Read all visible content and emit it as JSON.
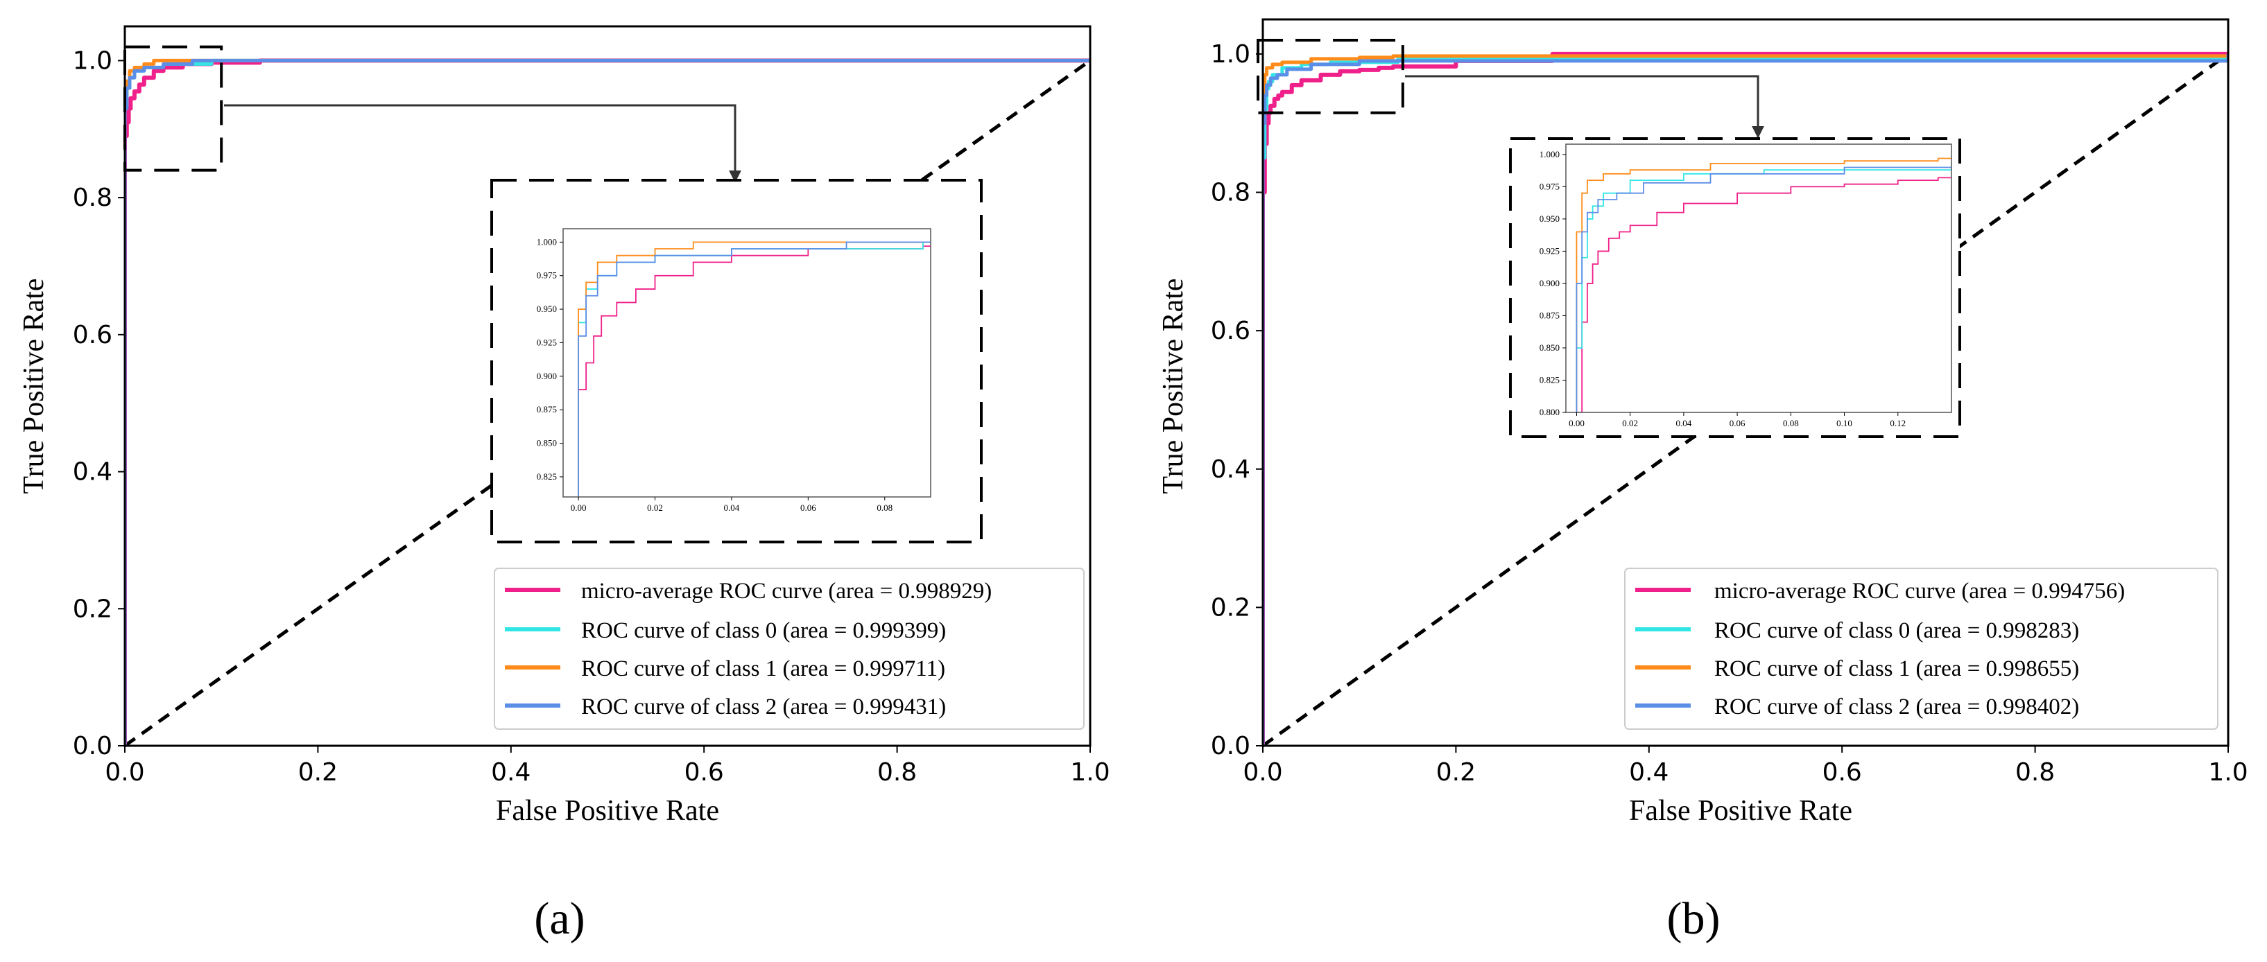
{
  "chart_data": [
    {
      "type": "line",
      "panel": "(a)",
      "caption": "(a)",
      "xlabel": "False Positive Rate",
      "ylabel": "True Positive Rate",
      "xlim": [
        0.0,
        1.0
      ],
      "ylim": [
        0.0,
        1.05
      ],
      "xticks": [
        "0.0",
        "0.2",
        "0.4",
        "0.6",
        "0.8",
        "1.0"
      ],
      "yticks": [
        "0.0",
        "0.2",
        "0.4",
        "0.6",
        "0.8",
        "1.0"
      ],
      "legend_position": "lower-right",
      "diagonal": {
        "x": [
          0,
          1
        ],
        "y": [
          0,
          1
        ],
        "style": "dashed"
      },
      "zoom_box": {
        "x": [
          0.0,
          0.1
        ],
        "y": [
          0.84,
          1.02
        ]
      },
      "series": [
        {
          "name": "micro-average ROC curve (area = 0.998929)",
          "color": "#f0208a",
          "x": [
            0,
            0,
            0.002,
            0.004,
            0.006,
            0.01,
            0.015,
            0.02,
            0.03,
            0.04,
            0.06,
            0.09,
            0.14,
            1.0
          ],
          "y": [
            0,
            0.89,
            0.91,
            0.93,
            0.945,
            0.955,
            0.965,
            0.975,
            0.985,
            0.99,
            0.995,
            0.997,
            1.0,
            1.0
          ]
        },
        {
          "name": "ROC curve of class 0 (area = 0.999399)",
          "color": "#33e6e6",
          "x": [
            0,
            0,
            0.002,
            0.005,
            0.01,
            0.02,
            0.04,
            0.09,
            1.0
          ],
          "y": [
            0,
            0.94,
            0.965,
            0.975,
            0.985,
            0.99,
            0.995,
            1.0,
            1.0
          ]
        },
        {
          "name": "ROC curve of class 1 (area = 0.999711)",
          "color": "#ff8c1a",
          "x": [
            0,
            0,
            0.002,
            0.005,
            0.01,
            0.02,
            0.03,
            1.0
          ],
          "y": [
            0,
            0.95,
            0.97,
            0.985,
            0.99,
            0.995,
            1.0,
            1.0
          ]
        },
        {
          "name": "ROC curve of class 2 (area = 0.999431)",
          "color": "#5b8ee6",
          "x": [
            0,
            0,
            0.002,
            0.005,
            0.01,
            0.02,
            0.04,
            0.07,
            1.0
          ],
          "y": [
            0,
            0.93,
            0.96,
            0.975,
            0.985,
            0.99,
            0.995,
            1.0,
            1.0
          ]
        }
      ],
      "inset": {
        "xlim": [
          -0.004,
          0.092
        ],
        "ylim": [
          0.81,
          1.01
        ],
        "xticks": [
          "0.00",
          "0.02",
          "0.04",
          "0.06",
          "0.08"
        ],
        "yticks": [
          "0.825",
          "0.850",
          "0.875",
          "0.900",
          "0.925",
          "0.950",
          "0.975",
          "1.000"
        ]
      }
    },
    {
      "type": "line",
      "panel": "(b)",
      "caption": "(b)",
      "xlabel": "False Positive Rate",
      "ylabel": "True Positive Rate",
      "xlim": [
        0.0,
        1.0
      ],
      "ylim": [
        0.0,
        1.05
      ],
      "xticks": [
        "0.0",
        "0.2",
        "0.4",
        "0.6",
        "0.8",
        "1.0"
      ],
      "yticks": [
        "0.0",
        "0.2",
        "0.4",
        "0.6",
        "0.8",
        "1.0"
      ],
      "legend_position": "lower-right",
      "diagonal": {
        "x": [
          0,
          1
        ],
        "y": [
          0,
          1
        ],
        "style": "dashed"
      },
      "zoom_box": {
        "x": [
          -0.005,
          0.145
        ],
        "y": [
          0.915,
          1.02
        ]
      },
      "series": [
        {
          "name": "micro-average ROC curve (area = 0.994756)",
          "color": "#f0208a",
          "x": [
            0,
            0,
            0.002,
            0.004,
            0.006,
            0.008,
            0.012,
            0.016,
            0.02,
            0.03,
            0.04,
            0.06,
            0.08,
            0.1,
            0.12,
            0.135,
            0.2,
            0.3,
            1.0
          ],
          "y": [
            0,
            0.8,
            0.87,
            0.9,
            0.915,
            0.925,
            0.935,
            0.94,
            0.945,
            0.955,
            0.962,
            0.97,
            0.975,
            0.977,
            0.98,
            0.982,
            0.99,
            1.0,
            1.0
          ]
        },
        {
          "name": "ROC curve of class 0 (area = 0.998283)",
          "color": "#33e6e6",
          "x": [
            0,
            0,
            0.002,
            0.004,
            0.006,
            0.01,
            0.02,
            0.04,
            0.07,
            0.14,
            1.0
          ],
          "y": [
            0,
            0.85,
            0.92,
            0.95,
            0.96,
            0.97,
            0.98,
            0.985,
            0.988,
            0.993,
            1.0
          ]
        },
        {
          "name": "ROC curve of class 1 (area = 0.998655)",
          "color": "#ff8c1a",
          "x": [
            0,
            0,
            0.002,
            0.004,
            0.01,
            0.02,
            0.05,
            0.1,
            0.135,
            1.0
          ],
          "y": [
            0,
            0.94,
            0.97,
            0.98,
            0.985,
            0.988,
            0.993,
            0.995,
            0.997,
            1.0
          ]
        },
        {
          "name": "ROC curve of class 2 (area = 0.998402)",
          "color": "#5b8ee6",
          "x": [
            0,
            0,
            0.002,
            0.004,
            0.008,
            0.015,
            0.025,
            0.05,
            0.1,
            1.0
          ],
          "y": [
            0,
            0.9,
            0.94,
            0.955,
            0.965,
            0.97,
            0.978,
            0.985,
            0.99,
            1.0
          ]
        }
      ],
      "inset": {
        "xlim": [
          -0.004,
          0.14
        ],
        "ylim": [
          0.8,
          1.008
        ],
        "xticks": [
          "0.00",
          "0.02",
          "0.04",
          "0.06",
          "0.08",
          "0.10",
          "0.12"
        ],
        "yticks": [
          "0.800",
          "0.825",
          "0.850",
          "0.875",
          "0.900",
          "0.925",
          "0.950",
          "0.975",
          "1.000"
        ]
      }
    }
  ]
}
